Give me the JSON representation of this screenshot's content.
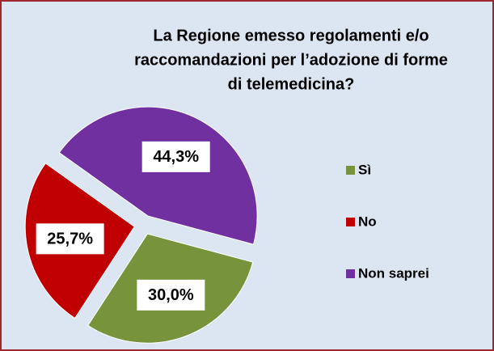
{
  "chart_data": {
    "type": "pie",
    "title": [
      "La Regione emesso regolamenti e/o",
      "raccomandazioni per l’adozione di forme",
      "di telemedicina?"
    ],
    "categories": [
      "Sì",
      "No",
      "Non saprei"
    ],
    "values": [
      30.0,
      25.7,
      44.3
    ],
    "value_labels": [
      "30,0%",
      "25,7%",
      "44,3%"
    ],
    "colors": [
      "#77933c",
      "#c00000",
      "#7030a0"
    ],
    "legend": "right"
  }
}
